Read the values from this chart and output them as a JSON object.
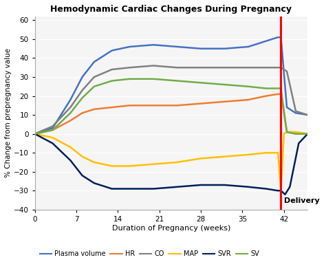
{
  "title": "Hemodynamic Cardiac Changes During Pregnancy",
  "xlabel": "Duration of Pregnancy (weeks)",
  "ylabel": "% Change from prepregnancy value",
  "delivery_label": "Delivery",
  "xlim": [
    0,
    46
  ],
  "ylim": [
    -40,
    62
  ],
  "yticks": [
    -40,
    -30,
    -20,
    -10,
    0,
    10,
    20,
    30,
    40,
    50,
    60
  ],
  "xticks": [
    0,
    7,
    14,
    21,
    28,
    35,
    42
  ],
  "delivery_x": 41.5,
  "fig_bg": "#ffffff",
  "plot_bg": "#f5f5f5",
  "grid_color": "#ffffff",
  "series": {
    "Plasma volume": {
      "color": "#4472C4",
      "lw": 1.8,
      "x": [
        0,
        3,
        6,
        8,
        10,
        13,
        16,
        20,
        24,
        28,
        32,
        36,
        39,
        41,
        41.5,
        42.5,
        44,
        46
      ],
      "y": [
        0,
        3,
        18,
        30,
        38,
        44,
        46,
        47,
        46,
        45,
        45,
        46,
        49,
        51,
        51,
        14,
        11,
        10
      ]
    },
    "HR": {
      "color": "#ED7D31",
      "lw": 1.8,
      "x": [
        0,
        3,
        6,
        8,
        10,
        13,
        16,
        20,
        24,
        28,
        32,
        36,
        39,
        41,
        41.5,
        42.5,
        44,
        46
      ],
      "y": [
        0,
        2,
        7,
        11,
        13,
        14,
        15,
        15,
        15,
        16,
        17,
        18,
        20,
        21,
        21,
        1,
        0,
        0
      ]
    },
    "CO": {
      "color": "#808080",
      "lw": 1.8,
      "x": [
        0,
        3,
        6,
        8,
        10,
        13,
        16,
        20,
        24,
        28,
        32,
        36,
        39,
        41,
        41.5,
        42.5,
        44,
        46
      ],
      "y": [
        0,
        4,
        14,
        23,
        30,
        34,
        35,
        36,
        35,
        35,
        35,
        35,
        35,
        35,
        35,
        33,
        12,
        10
      ]
    },
    "MAP": {
      "color": "#FFC000",
      "lw": 1.8,
      "x": [
        0,
        3,
        6,
        8,
        10,
        13,
        16,
        20,
        24,
        28,
        32,
        36,
        39,
        41,
        41.5,
        42.0,
        42.5,
        44,
        46
      ],
      "y": [
        0,
        -2,
        -7,
        -12,
        -15,
        -17,
        -17,
        -16,
        -15,
        -13,
        -12,
        -11,
        -10,
        -10,
        -30,
        0,
        1,
        1,
        0
      ]
    },
    "SVR": {
      "color": "#00205B",
      "lw": 1.8,
      "x": [
        0,
        3,
        6,
        8,
        10,
        13,
        16,
        20,
        24,
        28,
        32,
        36,
        39,
        41,
        41.5,
        42.2,
        43,
        44.5,
        46
      ],
      "y": [
        0,
        -5,
        -14,
        -22,
        -26,
        -29,
        -29,
        -29,
        -28,
        -27,
        -27,
        -28,
        -29,
        -30,
        -30,
        -32,
        -28,
        -5,
        0
      ]
    },
    "SV": {
      "color": "#70AD47",
      "lw": 1.8,
      "x": [
        0,
        3,
        6,
        8,
        10,
        13,
        16,
        20,
        24,
        28,
        32,
        36,
        39,
        41,
        41.5,
        42.5,
        44,
        46
      ],
      "y": [
        0,
        2,
        11,
        19,
        25,
        28,
        29,
        29,
        28,
        27,
        26,
        25,
        24,
        24,
        24,
        1,
        0,
        0
      ]
    }
  },
  "legend_order": [
    "Plasma volume",
    "HR",
    "CO",
    "MAP",
    "SVR",
    "SV"
  ]
}
